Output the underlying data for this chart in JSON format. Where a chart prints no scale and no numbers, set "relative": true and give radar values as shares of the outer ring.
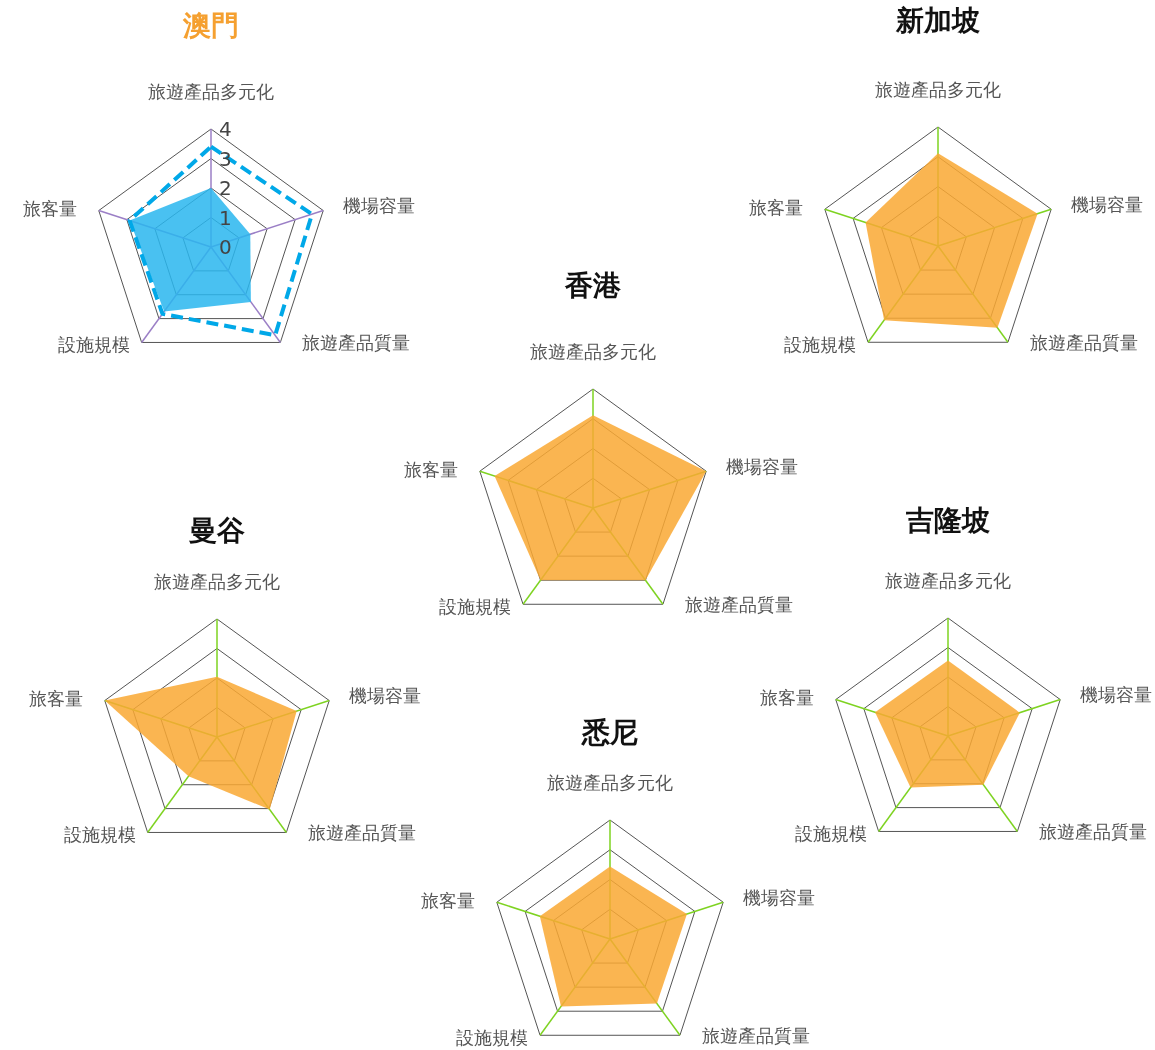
{
  "chart_data": [
    {
      "type": "radar",
      "title": "澳門",
      "categories": [
        "旅遊產品多元化",
        "機場容量",
        "旅遊產品質量",
        "設施規模",
        "旅客量"
      ],
      "ylim": [
        0,
        4
      ],
      "yticks": [
        0,
        1,
        2,
        3,
        4
      ],
      "grid": true,
      "series": [
        {
          "color": "#29b6ee",
          "values": [
            2.0,
            1.4,
            2.3,
            2.7,
            2.9
          ]
        },
        {
          "line_style": "dashed",
          "color": "#00a8e8",
          "values": [
            3.4,
            3.6,
            3.7,
            2.8,
            2.9
          ]
        }
      ]
    },
    {
      "type": "radar",
      "title": "新加坡",
      "categories": [
        "旅遊產品多元化",
        "機場容量",
        "旅遊產品質量",
        "設施規模",
        "旅客量"
      ],
      "relative": true,
      "grid": true,
      "series": [
        {
          "color": "#f9a832",
          "values": [
            0.78,
            0.88,
            0.85,
            0.77,
            0.64
          ]
        }
      ]
    },
    {
      "type": "radar",
      "title": "香港",
      "categories": [
        "旅遊產品多元化",
        "機場容量",
        "旅遊產品質量",
        "設施規模",
        "旅客量"
      ],
      "relative": true,
      "grid": true,
      "series": [
        {
          "color": "#f9a832",
          "values": [
            0.78,
            1.0,
            0.75,
            0.75,
            0.87
          ]
        }
      ]
    },
    {
      "type": "radar",
      "title": "曼谷",
      "categories": [
        "旅遊產品多元化",
        "機場容量",
        "旅遊產品質量",
        "設施規模",
        "旅客量"
      ],
      "relative": true,
      "grid": true,
      "series": [
        {
          "color": "#f9a832",
          "values": [
            0.51,
            0.71,
            0.76,
            0.41,
            1.0
          ]
        }
      ]
    },
    {
      "type": "radar",
      "title": "吉隆坡",
      "categories": [
        "旅遊產品多元化",
        "機場容量",
        "旅遊產品質量",
        "設施規模",
        "旅客量"
      ],
      "relative": true,
      "grid": true,
      "series": [
        {
          "color": "#f9a832",
          "values": [
            0.64,
            0.64,
            0.51,
            0.54,
            0.65
          ]
        }
      ]
    },
    {
      "type": "radar",
      "title": "悉尼",
      "categories": [
        "旅遊產品多元化",
        "機場容量",
        "旅遊產品質量",
        "設施規模",
        "旅客量"
      ],
      "relative": true,
      "grid": true,
      "series": [
        {
          "color": "#f9a832",
          "values": [
            0.61,
            0.68,
            0.67,
            0.7,
            0.62
          ]
        }
      ]
    }
  ]
}
